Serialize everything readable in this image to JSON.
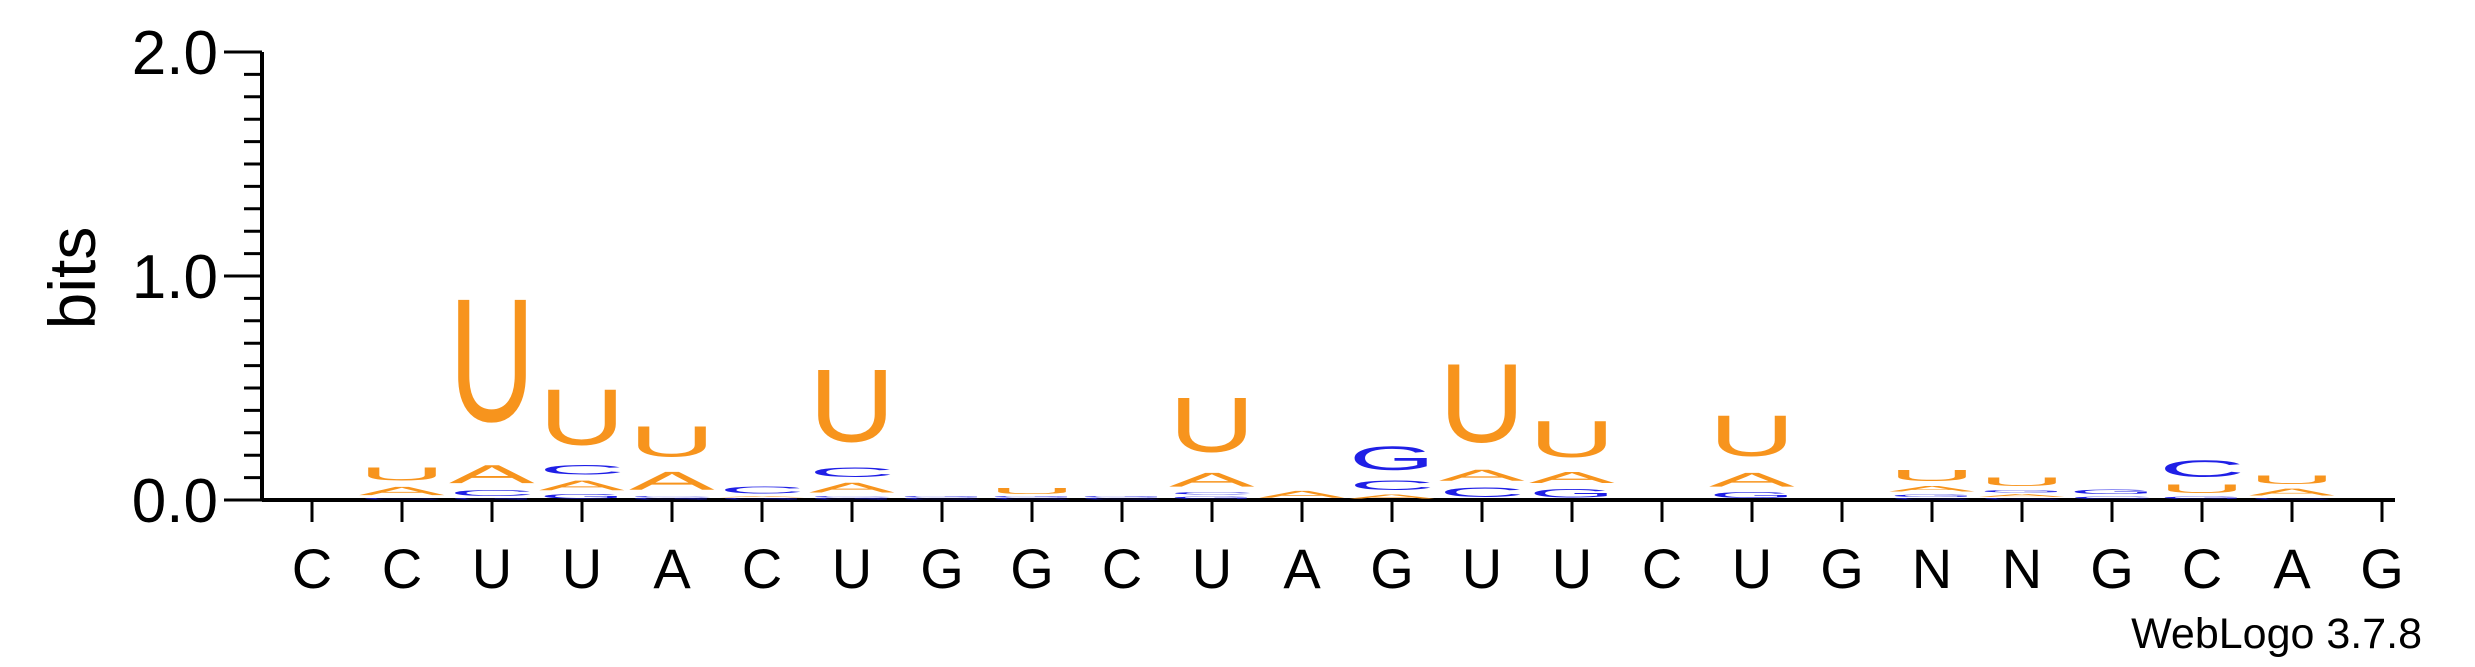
{
  "chart_data": {
    "type": "sequence-logo",
    "ylabel": "bits",
    "ylim": [
      0,
      2.0
    ],
    "yticks": [
      {
        "value": 0.0,
        "label": "0.0"
      },
      {
        "value": 1.0,
        "label": "1.0"
      },
      {
        "value": 2.0,
        "label": "2.0"
      }
    ],
    "categories": [
      "C",
      "C",
      "U",
      "U",
      "A",
      "C",
      "U",
      "G",
      "G",
      "C",
      "U",
      "A",
      "G",
      "U",
      "U",
      "C",
      "U",
      "G",
      "N",
      "N",
      "G",
      "C",
      "A",
      "G"
    ],
    "colors": {
      "U": "#f7941d",
      "A": "#f7941d",
      "C": "#1f1fe6",
      "G": "#1f1fe6"
    },
    "stacks": [
      [],
      [
        {
          "letter": "C",
          "value": 0.01
        },
        {
          "letter": "A",
          "value": 0.06
        },
        {
          "letter": "U",
          "value": 0.09
        }
      ],
      [
        {
          "letter": "G",
          "value": 0.01
        },
        {
          "letter": "C",
          "value": 0.04
        },
        {
          "letter": "A",
          "value": 0.13
        },
        {
          "letter": "U",
          "value": 0.88
        }
      ],
      [
        {
          "letter": "G",
          "value": 0.03
        },
        {
          "letter": "A",
          "value": 0.07
        },
        {
          "letter": "C",
          "value": 0.07
        },
        {
          "letter": "U",
          "value": 0.4
        }
      ],
      [
        {
          "letter": "G",
          "value": 0.01
        },
        {
          "letter": "C",
          "value": 0.01
        },
        {
          "letter": "A",
          "value": 0.13
        },
        {
          "letter": "U",
          "value": 0.22
        }
      ],
      [
        {
          "letter": "G",
          "value": 0.01
        },
        {
          "letter": "A",
          "value": 0.01
        },
        {
          "letter": "C",
          "value": 0.05
        }
      ],
      [
        {
          "letter": "G",
          "value": 0.01
        },
        {
          "letter": "C",
          "value": 0.01
        },
        {
          "letter": "A",
          "value": 0.07
        },
        {
          "letter": "C",
          "value": 0.07
        },
        {
          "letter": "U",
          "value": 0.52
        }
      ],
      [
        {
          "letter": "C",
          "value": 0.01
        },
        {
          "letter": "G",
          "value": 0.01
        }
      ],
      [
        {
          "letter": "C",
          "value": 0.01
        },
        {
          "letter": "G",
          "value": 0.01
        },
        {
          "letter": "U",
          "value": 0.04
        }
      ],
      [
        {
          "letter": "C",
          "value": 0.01
        },
        {
          "letter": "G",
          "value": 0.01
        }
      ],
      [
        {
          "letter": "G",
          "value": 0.02
        },
        {
          "letter": "C",
          "value": 0.02
        },
        {
          "letter": "A",
          "value": 0.1
        },
        {
          "letter": "U",
          "value": 0.39
        }
      ],
      [
        {
          "letter": "A",
          "value": 0.05
        }
      ],
      [
        {
          "letter": "A",
          "value": 0.03
        },
        {
          "letter": "C",
          "value": 0.07
        },
        {
          "letter": "G",
          "value": 0.17
        }
      ],
      [
        {
          "letter": "C",
          "value": 0.07
        },
        {
          "letter": "A",
          "value": 0.08
        },
        {
          "letter": "U",
          "value": 0.56
        }
      ],
      [
        {
          "letter": "G",
          "value": 0.06
        },
        {
          "letter": "A",
          "value": 0.08
        },
        {
          "letter": "U",
          "value": 0.26
        }
      ],
      [],
      [
        {
          "letter": "G",
          "value": 0.04
        },
        {
          "letter": "A",
          "value": 0.1
        },
        {
          "letter": "U",
          "value": 0.29
        }
      ],
      [],
      [
        {
          "letter": "C",
          "value": 0.01
        },
        {
          "letter": "G",
          "value": 0.02
        },
        {
          "letter": "A",
          "value": 0.04
        },
        {
          "letter": "U",
          "value": 0.08
        }
      ],
      [
        {
          "letter": "C",
          "value": 0.01
        },
        {
          "letter": "A",
          "value": 0.02
        },
        {
          "letter": "G",
          "value": 0.02
        },
        {
          "letter": "U",
          "value": 0.06
        }
      ],
      [
        {
          "letter": "C",
          "value": 0.02
        },
        {
          "letter": "G",
          "value": 0.03
        }
      ],
      [
        {
          "letter": "G",
          "value": 0.02
        },
        {
          "letter": "U",
          "value": 0.06
        },
        {
          "letter": "C",
          "value": 0.12
        }
      ],
      [
        {
          "letter": "C",
          "value": 0.01
        },
        {
          "letter": "A",
          "value": 0.05
        },
        {
          "letter": "U",
          "value": 0.06
        }
      ],
      []
    ]
  },
  "credit": "WebLogo 3.7.8"
}
